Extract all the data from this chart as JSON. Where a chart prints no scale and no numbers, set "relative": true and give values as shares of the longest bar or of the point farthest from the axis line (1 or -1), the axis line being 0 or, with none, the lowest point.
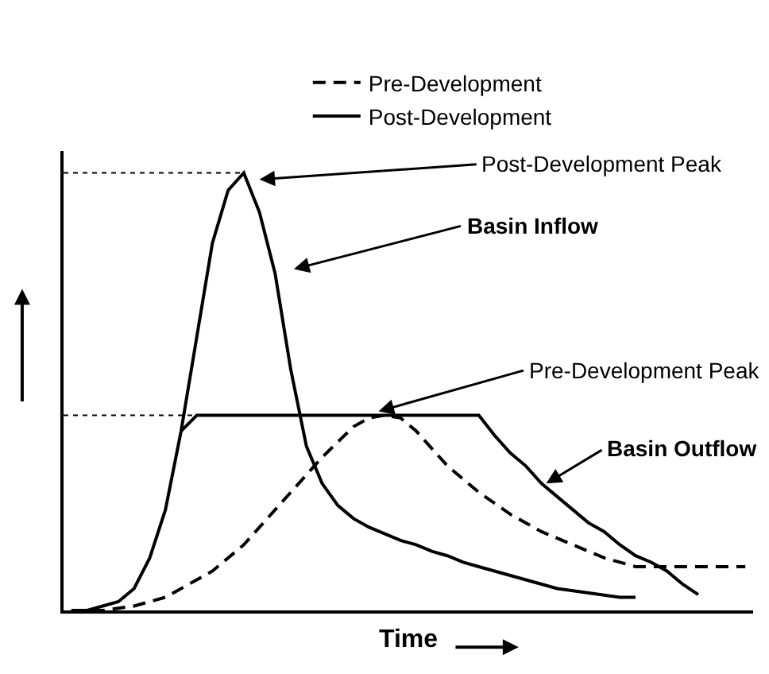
{
  "chart_data": {
    "type": "line",
    "relative": true,
    "xlabel": "Time",
    "legend": "top right",
    "marker": "none",
    "categories": [
      null,
      null,
      null,
      null,
      null,
      null,
      null,
      null,
      null,
      null,
      null,
      null,
      null,
      null,
      null,
      null,
      null,
      null,
      null,
      null,
      null,
      null,
      null,
      null,
      null,
      null,
      null,
      null,
      null,
      null,
      null,
      null,
      null,
      null,
      null,
      null,
      null,
      null,
      null,
      null,
      null,
      null,
      null,
      null
    ],
    "series": [
      {
        "name": "Pre-Development",
        "color": "#000000",
        "line_style": "dashed",
        "values": [
          0,
          0,
          0,
          0.005,
          0.01,
          0.02,
          0.03,
          0.05,
          0.07,
          0.09,
          0.12,
          0.15,
          0.19,
          0.23,
          0.27,
          0.31,
          0.35,
          0.385,
          0.42,
          0.44,
          0.446,
          0.44,
          0.41,
          0.37,
          0.33,
          0.3,
          0.27,
          0.245,
          0.22,
          0.2,
          0.18,
          0.165,
          0.15,
          0.135,
          0.12,
          0.11,
          0.1,
          0.1,
          0.1,
          0.1,
          0.1,
          0.1,
          0.1,
          0.1
        ]
      },
      {
        "name": "Post-Development",
        "color": "#000000",
        "line_style": "solid",
        "values": [
          0,
          0,
          0.01,
          0.02,
          0.05,
          0.12,
          0.23,
          0.41,
          0.625,
          0.84,
          0.96,
          1.0,
          0.91,
          0.77,
          0.55,
          0.375,
          0.29,
          0.24,
          0.21,
          0.19,
          0.175,
          0.16,
          0.15,
          0.135,
          0.125,
          0.11,
          0.1,
          0.09,
          0.08,
          0.07,
          0.06,
          0.05,
          0.045,
          0.04,
          0.035,
          0.03,
          0.03,
          null,
          null,
          null,
          null,
          null,
          null,
          null
        ]
      },
      {
        "color": "#000000",
        "line_style": "solid",
        "values": [
          null,
          null,
          null,
          null,
          null,
          null,
          null,
          0.41,
          0.446,
          0.446,
          0.446,
          0.446,
          0.446,
          0.446,
          0.446,
          0.446,
          0.446,
          0.446,
          0.446,
          0.446,
          0.446,
          0.446,
          0.446,
          0.446,
          0.446,
          0.446,
          0.446,
          0.4,
          0.36,
          0.33,
          0.29,
          0.26,
          0.23,
          0.2,
          0.18,
          0.15,
          0.125,
          0.11,
          0.09,
          0.06,
          0.036,
          null,
          null,
          null
        ]
      }
    ],
    "ref_lines": [
      {
        "axis": "y",
        "value": 1.0,
        "line_style": "dotted",
        "color": "#000000"
      },
      {
        "axis": "y",
        "value": 0.446,
        "line_style": "dotted",
        "color": "#000000"
      }
    ],
    "annotations": [
      "Post-Development Peak",
      "Basin Inflow",
      "Pre-Development Peak",
      "Basin Outflow"
    ]
  }
}
